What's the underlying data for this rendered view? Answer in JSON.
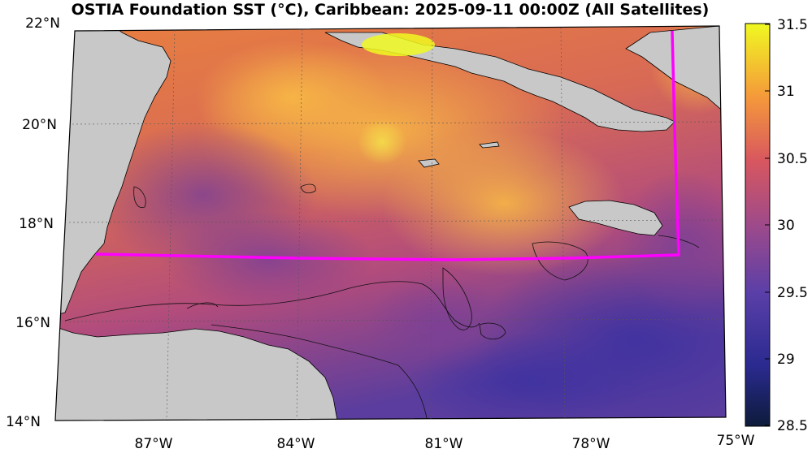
{
  "map": {
    "title": "OSTIA Foundation SST (°C), Caribbean: 2025-09-11 00:00Z (All Satellites)",
    "lat_ticks": [
      "22°N",
      "20°N",
      "18°N",
      "16°N",
      "14°N"
    ],
    "lon_ticks": [
      "87°W",
      "84°W",
      "81°W",
      "78°W",
      "75°W"
    ],
    "colorbar": {
      "ticks": [
        "31.5",
        "31",
        "30.5",
        "30",
        "29.5",
        "29",
        "28.5"
      ],
      "min": 28.5,
      "max": 31.5
    },
    "colors": {
      "land": "#c8c8c8",
      "boundary_line": "#ff00ff",
      "ocean_warm": "#f6a13b",
      "ocean_mid": "#c94f6d",
      "ocean_cool": "#4a3a9b",
      "ocean_hot": "#f0f921"
    }
  }
}
